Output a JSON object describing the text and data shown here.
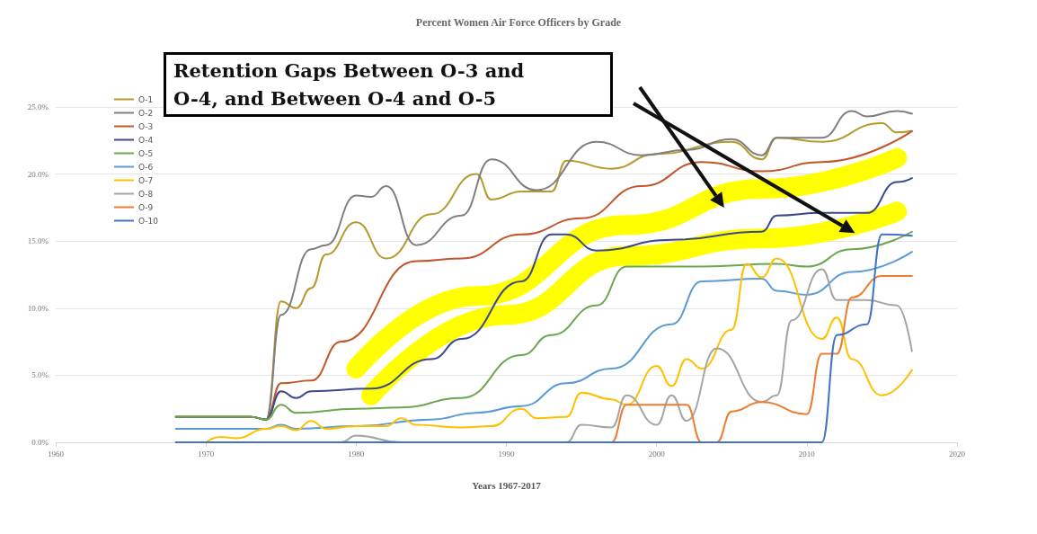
{
  "chart_data": {
    "type": "line",
    "title": "Percent Women Air Force Officers by Grade",
    "xlabel": "Years 1967-2017",
    "annotations": [
      "Retention Gaps Between O-3 and O-4, and Between O-4 and O-5"
    ],
    "xlim": [
      1960,
      2020
    ],
    "xticks": [
      1960,
      1970,
      1980,
      1990,
      2000,
      2010,
      2020
    ],
    "ylim": [
      0,
      25
    ],
    "yticks": [
      {
        "value": 0,
        "label": "0.0%"
      },
      {
        "value": 5,
        "label": "5.0%"
      },
      {
        "value": 10,
        "label": "10.0%"
      },
      {
        "value": 15,
        "label": "15.0%"
      },
      {
        "value": 20,
        "label": "20.0%"
      },
      {
        "value": 25,
        "label": "25.0%"
      }
    ],
    "grid": "y",
    "legend": "top left",
    "marker": "none",
    "series": [
      {
        "name": "O-1",
        "color": "#b59a2e",
        "x": [
          1968,
          1973,
          1974,
          1975,
          1976,
          1977,
          1978,
          1980,
          1982,
          1985,
          1988,
          1989,
          1991,
          1993,
          1994,
          1997,
          2000,
          2005,
          2007,
          2008,
          2011,
          2015,
          2016,
          2017
        ],
        "values": [
          1.9,
          1.9,
          1.7,
          10.5,
          10.0,
          11.5,
          14.0,
          16.4,
          13.7,
          17.0,
          20.0,
          18.1,
          18.7,
          18.7,
          21.0,
          20.4,
          21.5,
          22.4,
          21.1,
          22.7,
          22.4,
          23.8,
          23.1,
          23.2
        ]
      },
      {
        "name": "O-2",
        "color": "#7f7f7f",
        "x": [
          1968,
          1973,
          1974,
          1975,
          1977,
          1978,
          1980,
          1981,
          1982,
          1984,
          1987,
          1989,
          1992,
          1996,
          1999,
          2002,
          2005,
          2007,
          2008,
          2011,
          2013,
          2014,
          2016,
          2017
        ],
        "values": [
          1.9,
          1.9,
          1.7,
          9.5,
          14.4,
          14.7,
          18.4,
          18.3,
          19.1,
          14.7,
          16.9,
          21.1,
          18.8,
          22.4,
          21.4,
          21.8,
          22.6,
          21.4,
          22.7,
          22.7,
          24.7,
          24.3,
          24.7,
          24.5
        ]
      },
      {
        "name": "O-3",
        "color": "#c0562a",
        "x": [
          1968,
          1973,
          1974,
          1975,
          1977,
          1979,
          1984,
          1987,
          1991,
          1995,
          1999,
          2003,
          2007,
          2011,
          2017
        ],
        "values": [
          1.9,
          1.9,
          1.7,
          4.4,
          4.6,
          7.5,
          13.5,
          13.7,
          15.5,
          16.7,
          19.1,
          20.9,
          20.2,
          20.9,
          23.2
        ]
      },
      {
        "name": "O-4",
        "color": "#3b4a8c",
        "x": [
          1968,
          1973,
          1974,
          1975,
          1976,
          1977,
          1981,
          1985,
          1987,
          1991,
          1993,
          1994,
          1996,
          2001,
          2007,
          2008,
          2011,
          2014,
          2016,
          2017
        ],
        "values": [
          1.9,
          1.9,
          1.7,
          3.8,
          3.3,
          3.8,
          4.0,
          6.2,
          7.7,
          12.0,
          15.5,
          15.5,
          14.3,
          15.1,
          15.7,
          16.9,
          17.1,
          17.1,
          19.4,
          19.7
        ]
      },
      {
        "name": "O-5",
        "color": "#6aa84f",
        "x": [
          1968,
          1973,
          1974,
          1975,
          1976,
          1980,
          1983,
          1987,
          1991,
          1993,
          1996,
          1998,
          2003,
          2008,
          2010,
          2013,
          2017
        ],
        "values": [
          1.9,
          1.9,
          1.7,
          2.8,
          2.2,
          2.5,
          2.6,
          3.3,
          6.5,
          8.0,
          10.2,
          13.1,
          13.1,
          13.3,
          13.1,
          14.4,
          15.7
        ]
      },
      {
        "name": "O-6",
        "color": "#5b9bd5",
        "x": [
          1968,
          1974,
          1975,
          1976,
          1980,
          1985,
          1988,
          1991,
          1994,
          1997,
          2001,
          2003,
          2007,
          2008,
          2010,
          2013,
          2017
        ],
        "values": [
          1.0,
          1.0,
          1.3,
          1.0,
          1.2,
          1.7,
          2.2,
          2.7,
          4.4,
          5.5,
          8.8,
          12.0,
          12.2,
          11.3,
          11.0,
          12.7,
          14.2
        ]
      },
      {
        "name": "O-7",
        "color": "#ffc000",
        "x": [
          1970,
          1971,
          1972,
          1974,
          1975,
          1976,
          1977,
          1978,
          1980,
          1982,
          1983,
          1984,
          1987,
          1989,
          1991,
          1992,
          1994,
          1995,
          1997,
          1998,
          2000,
          2001,
          2002,
          2003,
          2005,
          2006,
          2007,
          2008,
          2011,
          2012,
          2013,
          2015,
          2017
        ],
        "values": [
          0.0,
          0.4,
          0.3,
          1.0,
          1.2,
          0.9,
          1.6,
          1.0,
          1.2,
          1.2,
          1.8,
          1.3,
          1.1,
          1.2,
          2.5,
          1.8,
          1.9,
          3.7,
          3.2,
          2.8,
          5.7,
          4.2,
          6.2,
          5.5,
          8.4,
          13.3,
          12.3,
          13.7,
          7.7,
          9.3,
          6.2,
          3.5,
          5.4
        ]
      },
      {
        "name": "O-8",
        "color": "#a5a5a5",
        "x": [
          1968,
          1979,
          1980,
          1983,
          1994,
          1995,
          1997,
          1998,
          2000,
          2001,
          2002,
          2004,
          2007,
          2008,
          2009,
          2011,
          2012,
          2014,
          2016,
          2017
        ],
        "values": [
          0.0,
          0.0,
          0.5,
          0.0,
          0.0,
          1.3,
          1.1,
          3.5,
          1.3,
          3.5,
          1.6,
          7.0,
          3.0,
          3.5,
          9.1,
          12.9,
          10.6,
          10.6,
          10.2,
          6.8
        ]
      },
      {
        "name": "O-9",
        "color": "#ed7d31",
        "x": [
          1968,
          1997,
          1998,
          2002,
          2003,
          2004,
          2005,
          2007,
          2010,
          2011,
          2012,
          2013,
          2015,
          2017
        ],
        "values": [
          0.0,
          0.0,
          2.8,
          2.8,
          0.0,
          0.0,
          2.3,
          3.0,
          2.1,
          6.6,
          6.6,
          10.8,
          12.4,
          12.4
        ]
      },
      {
        "name": "O-10",
        "color": "#4472c4",
        "x": [
          1968,
          2011,
          2012,
          2014,
          2015,
          2017
        ],
        "values": [
          0.0,
          0.0,
          8.0,
          8.8,
          15.5,
          15.4
        ]
      },
      {
        "color": "#ffff00",
        "x": [
          1980,
          1988,
          1998,
          2007,
          2016
        ],
        "values": [
          5.5,
          10.9,
          16.2,
          18.9,
          21.2
        ]
      },
      {
        "color": "#ffff00",
        "x": [
          1981,
          1990,
          1998,
          2007,
          2016
        ],
        "values": [
          3.5,
          9.5,
          13.9,
          15.2,
          17.2
        ]
      }
    ]
  }
}
